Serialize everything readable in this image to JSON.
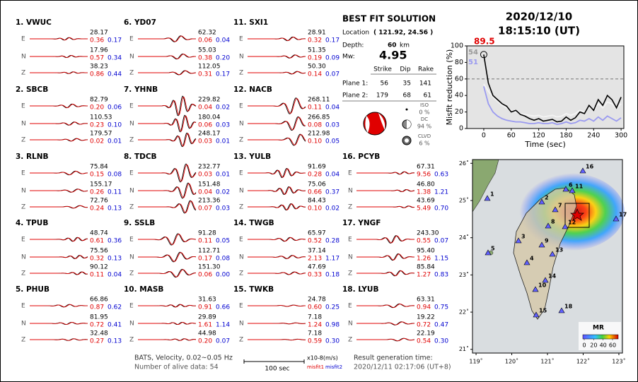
{
  "header": {
    "date": "2020/12/10",
    "time": "18:15:10  (UT)"
  },
  "solution": {
    "title": "BEST FIT SOLUTION",
    "location_label": "Location",
    "location": "( 121.92,  24.56 )",
    "depth_label": "Depth:",
    "depth": "60",
    "depth_unit": "km",
    "mw_label": "Mw:",
    "mw": "4.95",
    "columns": [
      "Strike",
      "Dip",
      "Rake"
    ],
    "planes": [
      {
        "label": "Plane 1:",
        "values": [
          "56",
          "35",
          "141"
        ]
      },
      {
        "label": "Plane 2:",
        "values": [
          "179",
          "68",
          "61"
        ]
      }
    ],
    "components": [
      {
        "label": "ISO",
        "value": "0 %"
      },
      {
        "label": "DC",
        "value": "94 %"
      },
      {
        "label": "CLVD",
        "value": "6 %"
      }
    ]
  },
  "stations": [
    {
      "name": "1. VWUC",
      "traces": [
        {
          "comp": "E",
          "amp": "28.17",
          "misfit1": "0.36",
          "misfit2": "0.17"
        },
        {
          "comp": "N",
          "amp": "17.96",
          "misfit1": "0.57",
          "misfit2": "0.34"
        },
        {
          "comp": "Z",
          "amp": "38.23",
          "misfit1": "0.86",
          "misfit2": "0.44"
        }
      ]
    },
    {
      "name": "2. SBCB",
      "traces": [
        {
          "comp": "E",
          "amp": "82.79",
          "misfit1": "0.20",
          "misfit2": "0.06"
        },
        {
          "comp": "N",
          "amp": "110.53",
          "misfit1": "0.23",
          "misfit2": "0.10"
        },
        {
          "comp": "Z",
          "amp": "179.57",
          "misfit1": "0.02",
          "misfit2": "0.01"
        }
      ]
    },
    {
      "name": "3. RLNB",
      "traces": [
        {
          "comp": "E",
          "amp": "75.84",
          "misfit1": "0.15",
          "misfit2": "0.08"
        },
        {
          "comp": "N",
          "amp": "155.17",
          "misfit1": "0.26",
          "misfit2": "0.11"
        },
        {
          "comp": "Z",
          "amp": "72.76",
          "misfit1": "0.24",
          "misfit2": "0.13"
        }
      ]
    },
    {
      "name": "4. TPUB",
      "traces": [
        {
          "comp": "E",
          "amp": "48.74",
          "misfit1": "0.61",
          "misfit2": "0.36"
        },
        {
          "comp": "N",
          "amp": "75.56",
          "misfit1": "0.32",
          "misfit2": "0.13"
        },
        {
          "comp": "Z",
          "amp": "90.12",
          "misfit1": "0.11",
          "misfit2": "0.04"
        }
      ]
    },
    {
      "name": "5. PHUB",
      "traces": [
        {
          "comp": "E",
          "amp": "66.86",
          "misfit1": "0.87",
          "misfit2": "0.62"
        },
        {
          "comp": "N",
          "amp": "81.95",
          "misfit1": "0.72",
          "misfit2": "0.41"
        },
        {
          "comp": "Z",
          "amp": "32.48",
          "misfit1": "0.27",
          "misfit2": "0.13"
        }
      ]
    },
    {
      "name": "6. YD07",
      "traces": [
        {
          "comp": "E",
          "amp": "62.32",
          "misfit1": "0.06",
          "misfit2": "0.04"
        },
        {
          "comp": "N",
          "amp": "55.03",
          "misfit1": "0.38",
          "misfit2": "0.20"
        },
        {
          "comp": "Z",
          "amp": "112.05",
          "misfit1": "0.31",
          "misfit2": "0.17"
        }
      ]
    },
    {
      "name": "7. YHNB",
      "traces": [
        {
          "comp": "E",
          "amp": "229.82",
          "misfit1": "0.04",
          "misfit2": "0.02"
        },
        {
          "comp": "N",
          "amp": "180.04",
          "misfit1": "0.06",
          "misfit2": "0.03"
        },
        {
          "comp": "Z",
          "amp": "248.17",
          "misfit1": "0.03",
          "misfit2": "0.01"
        }
      ]
    },
    {
      "name": "8. TDCB",
      "traces": [
        {
          "comp": "E",
          "amp": "232.77",
          "misfit1": "0.03",
          "misfit2": "0.01"
        },
        {
          "comp": "N",
          "amp": "151.48",
          "misfit1": "0.04",
          "misfit2": "0.02"
        },
        {
          "comp": "Z",
          "amp": "213.36",
          "misfit1": "0.07",
          "misfit2": "0.03"
        }
      ]
    },
    {
      "name": "9. SSLB",
      "traces": [
        {
          "comp": "E",
          "amp": "91.28",
          "misfit1": "0.11",
          "misfit2": "0.05"
        },
        {
          "comp": "N",
          "amp": "112.71",
          "misfit1": "0.17",
          "misfit2": "0.08"
        },
        {
          "comp": "Z",
          "amp": "151.30",
          "misfit1": "0.06",
          "misfit2": "0.00"
        }
      ]
    },
    {
      "name": "10. MASB",
      "traces": [
        {
          "comp": "E",
          "amp": "31.63",
          "misfit1": "0.91",
          "misfit2": "0.66"
        },
        {
          "comp": "N",
          "amp": "29.89",
          "misfit1": "1.61",
          "misfit2": "1.14"
        },
        {
          "comp": "Z",
          "amp": "44.98",
          "misfit1": "0.20",
          "misfit2": "0.07"
        }
      ]
    },
    {
      "name": "11. SXI1",
      "traces": [
        {
          "comp": "E",
          "amp": "28.91",
          "misfit1": "0.32",
          "misfit2": "0.17"
        },
        {
          "comp": "N",
          "amp": "51.35",
          "misfit1": "0.19",
          "misfit2": "0.09"
        },
        {
          "comp": "Z",
          "amp": "50.30",
          "misfit1": "0.14",
          "misfit2": "0.07"
        }
      ]
    },
    {
      "name": "12. NACB",
      "traces": [
        {
          "comp": "E",
          "amp": "268.11",
          "misfit1": "0.11",
          "misfit2": "0.04"
        },
        {
          "comp": "N",
          "amp": "266.85",
          "misfit1": "0.08",
          "misfit2": "0.03"
        },
        {
          "comp": "Z",
          "amp": "212.98",
          "misfit1": "0.10",
          "misfit2": "0.05"
        }
      ]
    },
    {
      "name": "13. YULB",
      "traces": [
        {
          "comp": "E",
          "amp": "91.69",
          "misfit1": "0.28",
          "misfit2": "0.04"
        },
        {
          "comp": "N",
          "amp": "75.06",
          "misfit1": "0.66",
          "misfit2": "0.37"
        },
        {
          "comp": "Z",
          "amp": "84.43",
          "misfit1": "0.10",
          "misfit2": "0.02"
        }
      ]
    },
    {
      "name": "14. TWGB",
      "traces": [
        {
          "comp": "E",
          "amp": "65.97",
          "misfit1": "0.52",
          "misfit2": "0.28"
        },
        {
          "comp": "N",
          "amp": "37.14",
          "misfit1": "2.13",
          "misfit2": "1.17"
        },
        {
          "comp": "Z",
          "amp": "47.69",
          "misfit1": "0.33",
          "misfit2": "0.18"
        }
      ]
    },
    {
      "name": "15. TWKB",
      "traces": [
        {
          "comp": "E",
          "amp": "24.78",
          "misfit1": "0.60",
          "misfit2": "0.25"
        },
        {
          "comp": "N",
          "amp": "7.18",
          "misfit1": "1.24",
          "misfit2": "0.98"
        },
        {
          "comp": "Z",
          "amp": "7.18",
          "misfit1": "0.59",
          "misfit2": "0.30"
        }
      ]
    },
    {
      "name": "16. PCYB",
      "traces": [
        {
          "comp": "E",
          "amp": "67.31",
          "misfit1": "9.56",
          "misfit2": "0.63"
        },
        {
          "comp": "N",
          "amp": "46.80",
          "misfit1": "1.38",
          "misfit2": "1.21"
        },
        {
          "comp": "Z",
          "amp": "43.69",
          "misfit1": "5.49",
          "misfit2": "0.70"
        }
      ]
    },
    {
      "name": "17. YNGF",
      "traces": [
        {
          "comp": "E",
          "amp": "243.30",
          "misfit1": "0.55",
          "misfit2": "0.07"
        },
        {
          "comp": "N",
          "amp": "95.40",
          "misfit1": "1.26",
          "misfit2": "1.15"
        },
        {
          "comp": "Z",
          "amp": "85.84",
          "misfit1": "1.27",
          "misfit2": "0.83"
        }
      ]
    },
    {
      "name": "18. LYUB",
      "traces": [
        {
          "comp": "E",
          "amp": "63.31",
          "misfit1": "0.94",
          "misfit2": "0.75"
        },
        {
          "comp": "N",
          "amp": "19.22",
          "misfit1": "0.72",
          "misfit2": "0.47"
        },
        {
          "comp": "Z",
          "amp": "22.19",
          "misfit1": "0.54",
          "misfit2": "0.30"
        }
      ]
    }
  ],
  "footer": {
    "info": "BATS, Velocity, 0.02~0.05 Hz",
    "alive": "Number of alive data: 54",
    "scale": "100 sec",
    "units": "x10-8(m/s)",
    "misfit1": "misfit1",
    "misfit2": "misfit2",
    "result_label": "Result generation time:",
    "result_time": "2020/12/11 02:17:06 (UT+8)"
  },
  "chart_data": {
    "type": "line",
    "xlabel": "Time (sec)",
    "ylabel": "Misfit reduction (%)",
    "x": [
      0,
      10,
      20,
      30,
      40,
      50,
      60,
      70,
      80,
      90,
      100,
      110,
      120,
      130,
      140,
      150,
      160,
      170,
      180,
      190,
      200,
      210,
      220,
      230,
      240,
      250,
      260,
      270,
      280,
      290,
      300
    ],
    "series": [
      {
        "color": "#f4f4f4",
        "values": [
          54,
          45,
          38,
          33,
          28,
          25,
          22,
          20,
          18,
          17,
          16,
          15,
          16,
          14,
          15,
          16,
          14,
          15,
          18,
          16,
          18,
          22,
          20,
          26,
          22,
          30,
          25,
          32,
          30,
          24,
          30
        ]
      },
      {
        "color": "#9a9af0",
        "values": [
          51,
          30,
          20,
          15,
          12,
          10,
          9,
          8,
          8,
          7,
          6,
          6,
          7,
          6,
          6,
          7,
          5,
          6,
          8,
          6,
          7,
          10,
          9,
          12,
          9,
          14,
          10,
          15,
          12,
          9,
          13
        ]
      },
      {
        "color": "#000000",
        "values": [
          89.5,
          55,
          40,
          35,
          30,
          27,
          20,
          22,
          17,
          15,
          12,
          10,
          12,
          9,
          10,
          11,
          8,
          9,
          14,
          10,
          13,
          20,
          18,
          28,
          22,
          35,
          28,
          40,
          35,
          25,
          38
        ]
      }
    ],
    "label_colors": [
      "#999999",
      "#9a9af0",
      "#e00000"
    ],
    "hline": 60,
    "xlim": [
      -37,
      306
    ],
    "ylim": [
      0,
      100
    ],
    "xticks": [
      0,
      60,
      120,
      180,
      240,
      300
    ],
    "yticks": [
      0,
      20,
      40,
      60,
      80,
      100
    ]
  },
  "map": {
    "xlim": [
      118.9,
      123.1
    ],
    "ylim": [
      20.9,
      26.1
    ],
    "xticks": [
      {
        "value": 119,
        "label": "119˚"
      },
      {
        "value": 120,
        "label": "120˚"
      },
      {
        "value": 121,
        "label": "121˚"
      },
      {
        "value": 122,
        "label": "122˚"
      },
      {
        "value": 123,
        "label": "123˚"
      }
    ],
    "yticks": [
      {
        "value": 21,
        "label": "21˚"
      },
      {
        "value": 22,
        "label": "22˚"
      },
      {
        "value": 23,
        "label": "23˚"
      },
      {
        "value": 24,
        "label": "24˚"
      },
      {
        "value": 25,
        "label": "25˚"
      },
      {
        "value": 26,
        "label": "26˚"
      }
    ],
    "station_labels": [
      "1",
      "2",
      "3",
      "4",
      "5",
      "6",
      "7",
      "8",
      "9",
      "10",
      "11",
      "12",
      "13",
      "14",
      "15",
      "16",
      "17",
      "18"
    ],
    "colorbar": {
      "title": "MR",
      "ticks": [
        0,
        20,
        40,
        60
      ]
    }
  }
}
